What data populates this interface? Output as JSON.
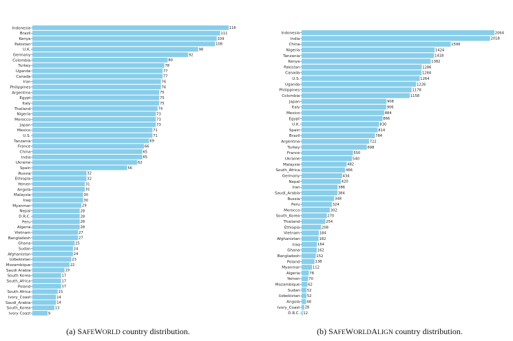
{
  "captions": [
    {
      "prefix": "(a) ",
      "name_first": "S",
      "name_sc": "AFE",
      "name_second": "W",
      "name_sc2": "ORLD",
      "rest": " country distribution."
    },
    {
      "prefix": "(b) ",
      "name_first": "S",
      "name_sc": "AFE",
      "name_second": "W",
      "name_sc2": "ORLD",
      "name_third": "A",
      "name_sc3": "LIGN",
      "rest": " country distribution."
    }
  ],
  "chart_data": [
    {
      "type": "bar",
      "orientation": "horizontal",
      "color": "#87ceeb",
      "categories": [
        "Indonesia",
        "Brazil",
        "Kenya",
        "Pakistan",
        "U.K.",
        "Germany",
        "Colombia",
        "Turkey",
        "Uganda",
        "Canada",
        "Iran",
        "Philippines",
        "Argentina",
        "Egypt",
        "Italy",
        "Thailand",
        "Nigeria",
        "Morocco",
        "Japan",
        "Mexico",
        "U.S.",
        "Tanzania",
        "France",
        "China",
        "India",
        "Ukraine",
        "Spain",
        "Russia",
        "Ethiopia",
        "Yemen",
        "Angola",
        "Malaysia",
        "Iraq",
        "Myanmar",
        "Nepal",
        "D.R.C.",
        "Peru",
        "Algeria",
        "Vietnam",
        "Bangladesh",
        "Ghana",
        "Sudan",
        "Afghanistan",
        "Uzbekistan",
        "Mozambique",
        "Saudi Arabia",
        "South Korea",
        "South_Africa",
        "Poland",
        "South Africa",
        "Ivory_Coast",
        "Saudi_Arabia",
        "South_Korea",
        "Ivory Coast"
      ],
      "values": [
        116,
        111,
        109,
        108,
        98,
        92,
        80,
        78,
        77,
        77,
        76,
        76,
        75,
        75,
        75,
        74,
        73,
        73,
        73,
        71,
        71,
        69,
        66,
        65,
        65,
        62,
        56,
        32,
        32,
        31,
        31,
        30,
        30,
        29,
        28,
        28,
        28,
        28,
        27,
        27,
        25,
        24,
        24,
        23,
        22,
        19,
        17,
        17,
        17,
        15,
        14,
        14,
        13,
        9
      ],
      "xlim": [
        0,
        116
      ]
    },
    {
      "type": "bar",
      "orientation": "horizontal",
      "color": "#87ceeb",
      "categories": [
        "Indonesia",
        "India",
        "China",
        "Nigeria",
        "Tanzania",
        "Kenya",
        "Pakistan",
        "Canada",
        "U.S.",
        "Uganda",
        "Philippines",
        "Colombia",
        "Japan",
        "Italy",
        "Mexico",
        "Egypt",
        "U.K.",
        "Spain",
        "Brazil",
        "Argentina",
        "Turkey",
        "France",
        "Ukraine",
        "Malaysia",
        "South_Africa",
        "Germany",
        "Nepal",
        "Iran",
        "Saudi_Arabia",
        "Russia",
        "Peru",
        "Morocco",
        "South_Korea",
        "Thailand",
        "Ethiopia",
        "Vietnam",
        "Afghanistan",
        "Iraq",
        "Ghana",
        "Bangladesh",
        "Poland",
        "Myanmar",
        "Algeria",
        "Yemen",
        "Mozambique",
        "Sudan",
        "Uzbekistan",
        "Angola",
        "Ivory_Coast",
        "D.R.C."
      ],
      "values": [
        2064,
        2018,
        1596,
        1424,
        1418,
        1382,
        1286,
        1284,
        1264,
        1226,
        1178,
        1158,
        908,
        906,
        884,
        866,
        830,
        814,
        784,
        722,
        698,
        550,
        540,
        482,
        466,
        434,
        420,
        386,
        384,
        348,
        324,
        302,
        270,
        254,
        208,
        184,
        182,
        164,
        162,
        152,
        138,
        112,
        78,
        70,
        62,
        52,
        52,
        48,
        28,
        12
      ],
      "xlim": [
        0,
        2064
      ]
    }
  ]
}
